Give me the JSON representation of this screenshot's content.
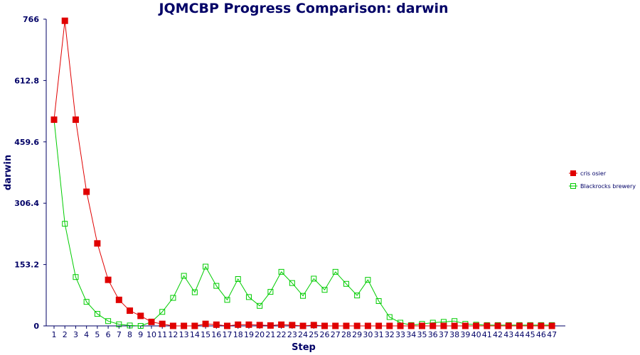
{
  "chart_data": {
    "type": "line",
    "title": "JQMCBP Progress Comparison: darwin",
    "xlabel": "Step",
    "ylabel": "darwin",
    "x": [
      1,
      2,
      3,
      4,
      5,
      6,
      7,
      8,
      9,
      10,
      11,
      12,
      13,
      14,
      15,
      16,
      17,
      18,
      19,
      20,
      21,
      22,
      23,
      24,
      25,
      26,
      27,
      28,
      29,
      30,
      31,
      32,
      33,
      34,
      35,
      36,
      37,
      38,
      39,
      40,
      41,
      42,
      43,
      44,
      45,
      46,
      47
    ],
    "ylim": [
      0,
      766
    ],
    "yticks": [
      "0",
      "153.2",
      "306.4",
      "459.6",
      "612.8",
      "766"
    ],
    "grid": false,
    "legend_position": "right",
    "series": [
      {
        "name": "cris osier",
        "color": "#e00000",
        "marker": "filled-square",
        "values": [
          515,
          762,
          515,
          335,
          206,
          115,
          65,
          38,
          25,
          10,
          5,
          0,
          0,
          0,
          5,
          3,
          0,
          3,
          3,
          2,
          1,
          3,
          2,
          0,
          2,
          0,
          0,
          0,
          0,
          0,
          0,
          0,
          0,
          0,
          0,
          0,
          0,
          0,
          0,
          0,
          0,
          0,
          0,
          0,
          0,
          0,
          0
        ]
      },
      {
        "name": "Blackrocks brewery",
        "color": "#00cc00",
        "marker": "open-square",
        "values": [
          515,
          255,
          122,
          60,
          30,
          12,
          4,
          1,
          0,
          10,
          35,
          70,
          125,
          84,
          148,
          100,
          65,
          117,
          72,
          50,
          85,
          135,
          107,
          75,
          118,
          90,
          135,
          105,
          76,
          115,
          62,
          22,
          8,
          2,
          5,
          8,
          10,
          12,
          5,
          3,
          2,
          2,
          2,
          2,
          2,
          2,
          2
        ]
      }
    ]
  }
}
